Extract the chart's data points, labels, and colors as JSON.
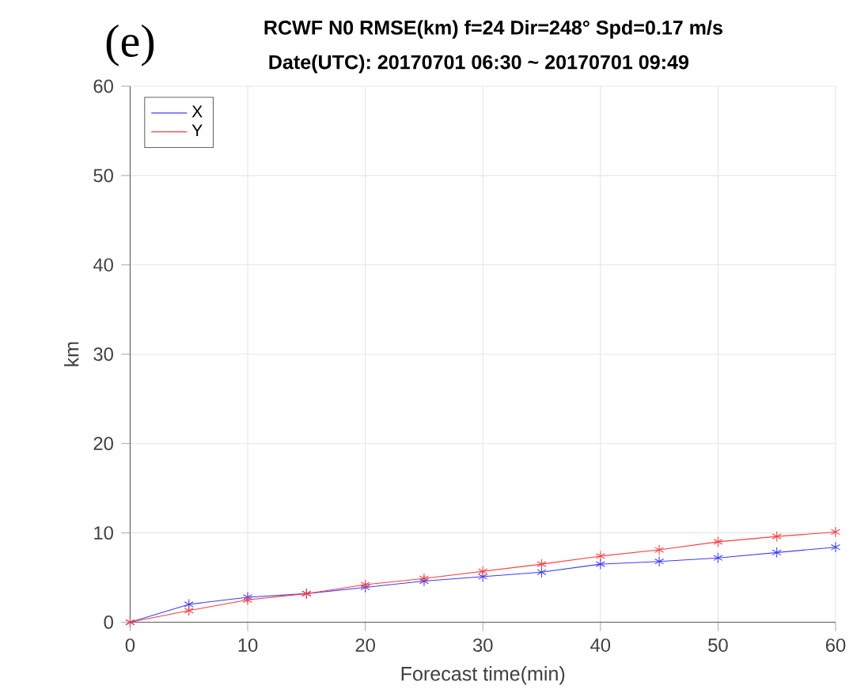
{
  "chart_data": {
    "type": "line",
    "title": "RCWF N0 RMSE(km)  f=24  Dir=248°  Spd=0.17 m/s",
    "subtitle": "Date(UTC): 20170701 06:30 ~ 20170701 09:49",
    "xlabel": "Forecast time(min)",
    "ylabel": "km",
    "annotations": [
      "(e)"
    ],
    "x": [
      0,
      5,
      10,
      15,
      20,
      25,
      30,
      35,
      40,
      45,
      50,
      55,
      60
    ],
    "series": [
      {
        "name": "X",
        "color": "#3c3cff",
        "values": [
          0,
          2.0,
          2.8,
          3.2,
          3.9,
          4.6,
          5.1,
          5.6,
          6.5,
          6.8,
          7.2,
          7.8,
          8.4
        ]
      },
      {
        "name": "Y",
        "color": "#ff3c3c",
        "values": [
          0,
          1.3,
          2.5,
          3.2,
          4.2,
          4.9,
          5.7,
          6.5,
          7.4,
          8.1,
          9.0,
          9.6,
          10.1
        ]
      }
    ],
    "xlim": [
      0,
      60
    ],
    "ylim": [
      0,
      60
    ],
    "xticks": [
      0,
      10,
      20,
      30,
      40,
      50,
      60
    ],
    "yticks": [
      0,
      10,
      20,
      30,
      40,
      50,
      60
    ],
    "grid": true,
    "legend": "top left",
    "marker": "cross",
    "line_style": "solid"
  }
}
